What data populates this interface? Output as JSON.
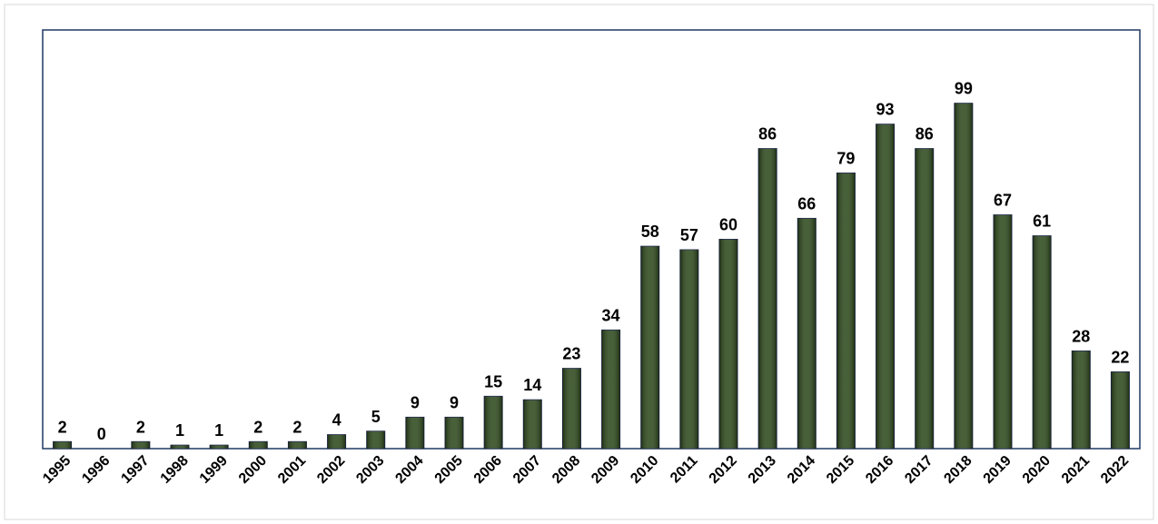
{
  "chart_data": {
    "type": "bar",
    "categories": [
      "1995",
      "1996",
      "1997",
      "1998",
      "1999",
      "2000",
      "2001",
      "2002",
      "2003",
      "2004",
      "2005",
      "2006",
      "2007",
      "2008",
      "2009",
      "2010",
      "2011",
      "2012",
      "2013",
      "2014",
      "2015",
      "2016",
      "2017",
      "2018",
      "2019",
      "2020",
      "2021",
      "2022"
    ],
    "values": [
      2,
      0,
      2,
      1,
      1,
      2,
      2,
      4,
      5,
      9,
      9,
      15,
      14,
      23,
      34,
      58,
      57,
      60,
      86,
      66,
      79,
      93,
      86,
      99,
      67,
      61,
      28,
      22
    ],
    "color": "#2e4a1c",
    "ylim": [
      0,
      120
    ]
  }
}
